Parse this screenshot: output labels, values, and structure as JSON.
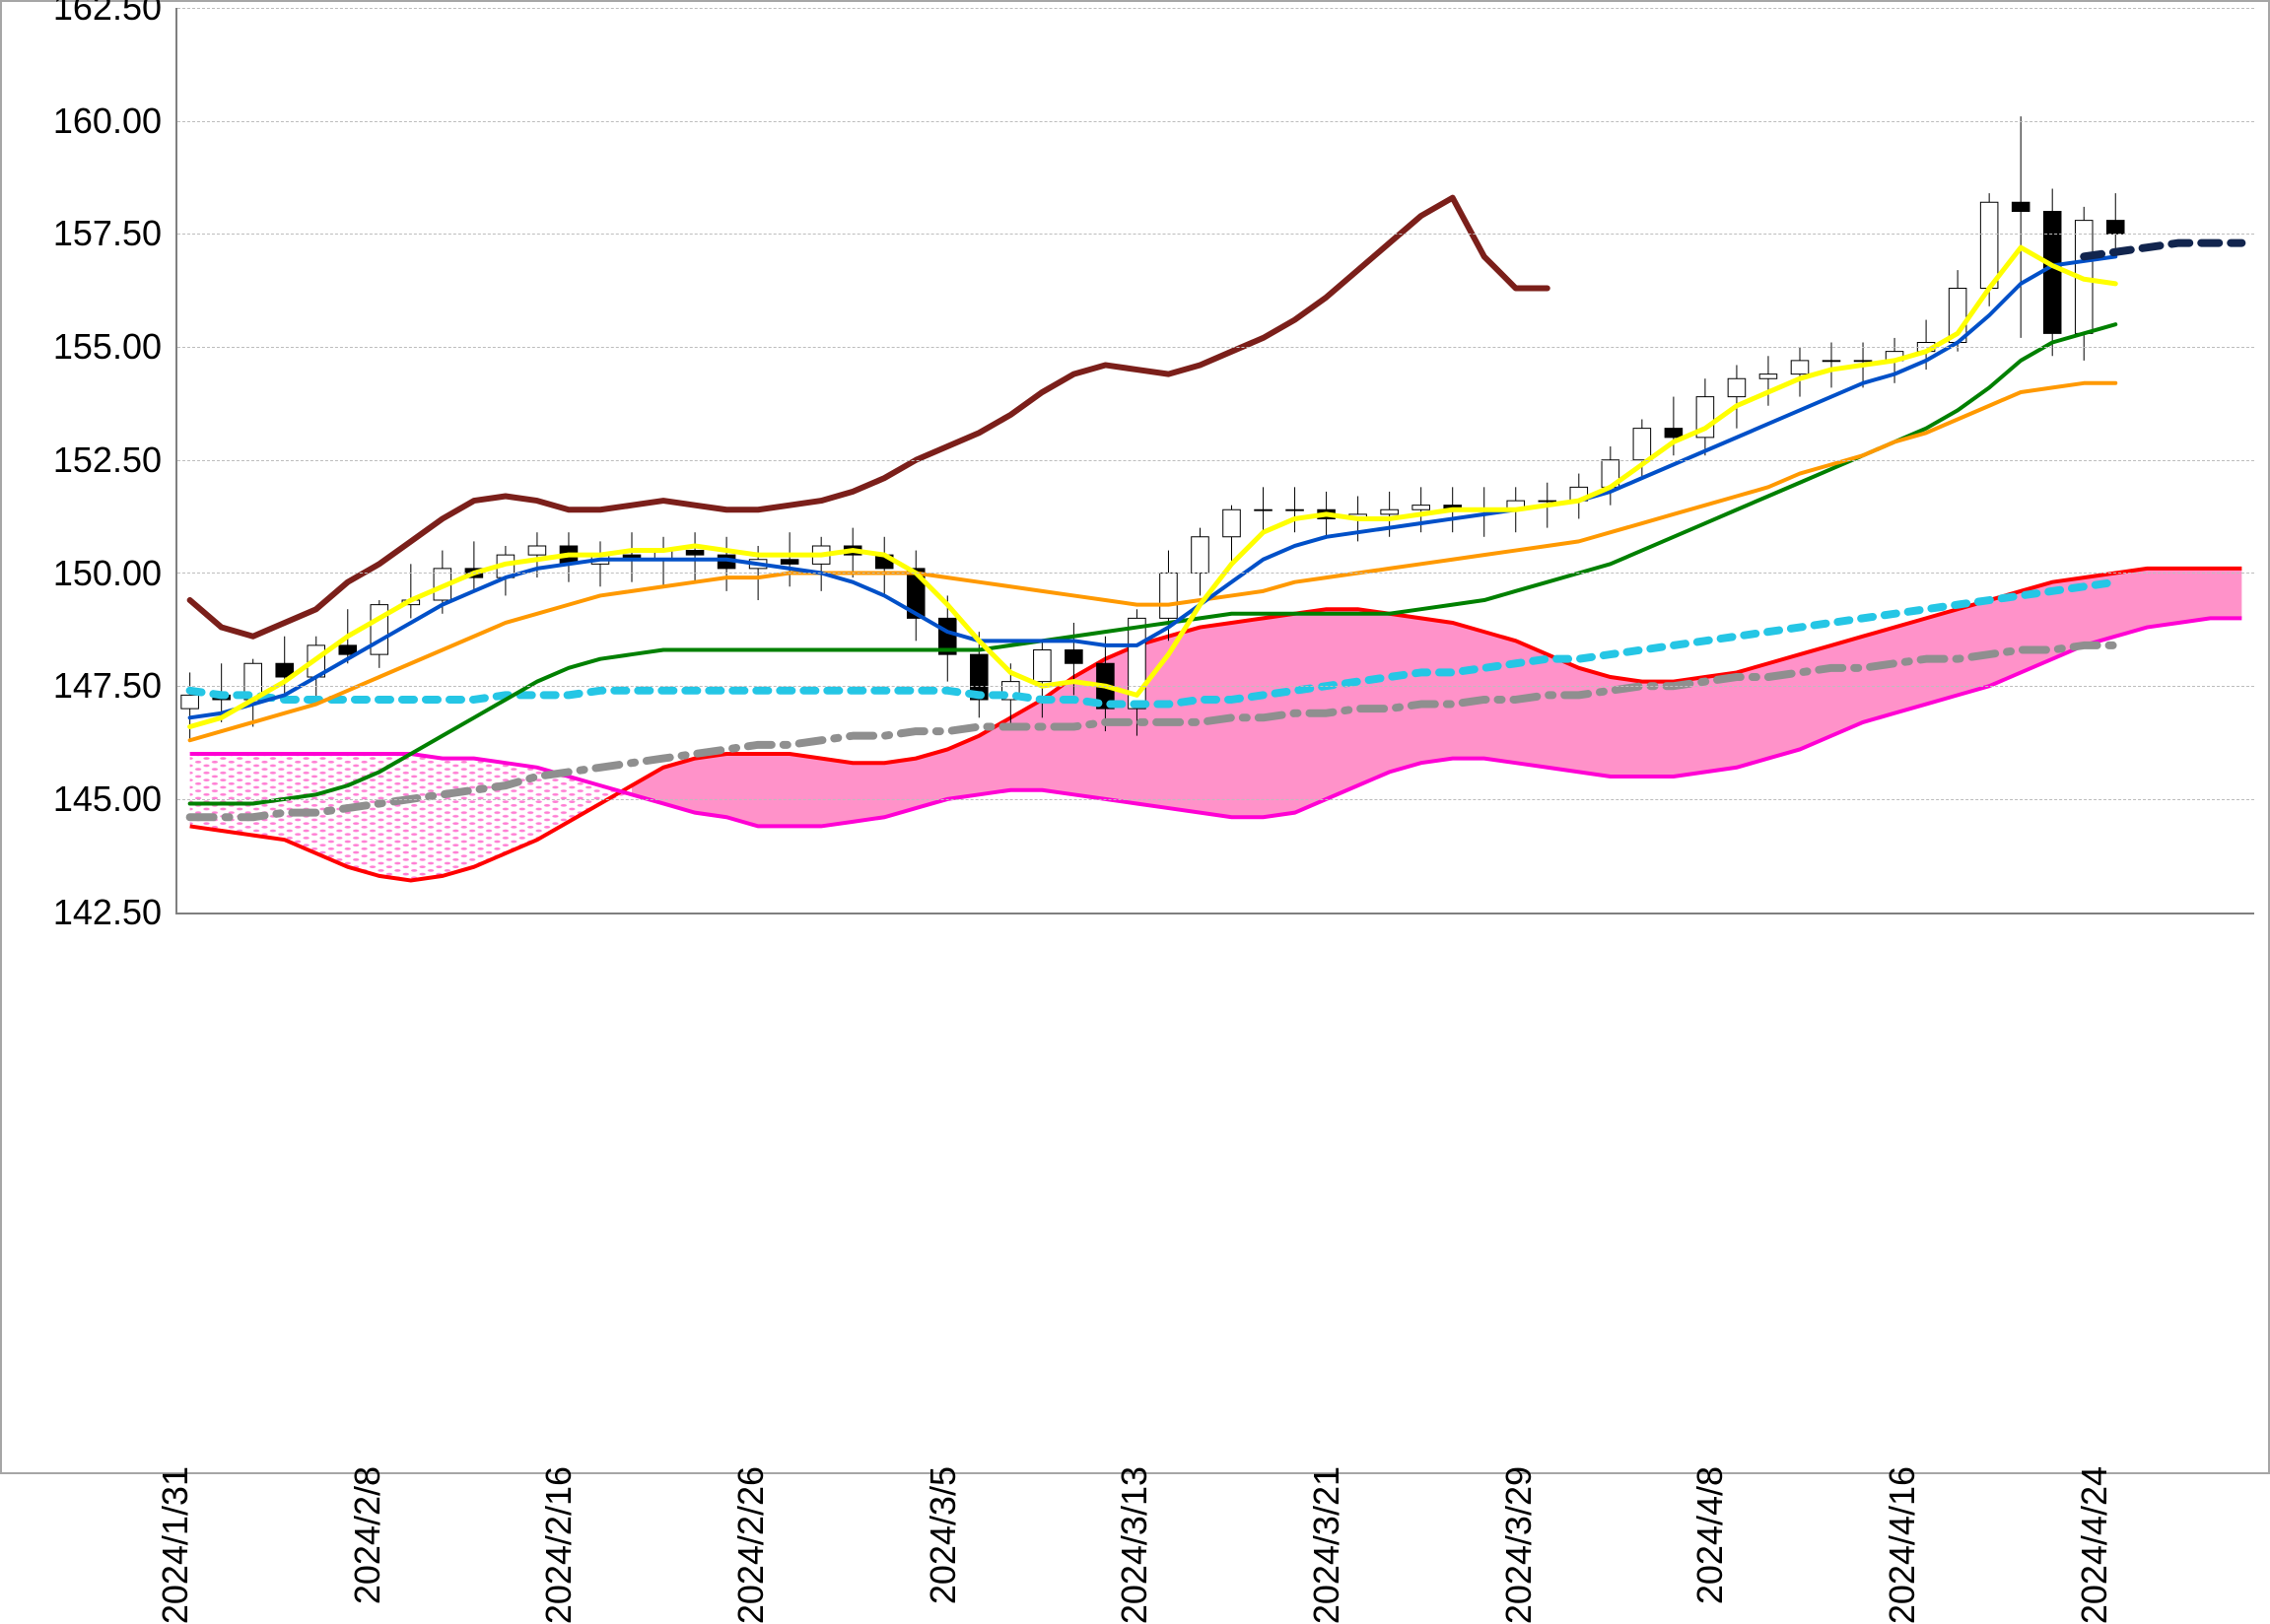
{
  "chart": {
    "type": "financial-ichimoku",
    "title": "",
    "background_color": "#ffffff",
    "border_color": "#a6a6a6",
    "grid_color": "#bdbdbd",
    "axis_color": "#7f7f7f",
    "tick_fontsize": 36,
    "tick_color": "#000000",
    "ylim": [
      142.5,
      162.5
    ],
    "ytick_step": 2.5,
    "ytick_labels": [
      "142.50",
      "145.00",
      "147.50",
      "150.00",
      "152.50",
      "155.00",
      "157.50",
      "160.00",
      "162.50"
    ],
    "x_categories": [
      "2024/1/31",
      "2024/2/8",
      "2024/2/16",
      "2024/2/26",
      "2024/3/5",
      "2024/3/13",
      "2024/3/21",
      "2024/3/29",
      "2024/4/8",
      "2024/4/16",
      "2024/4/24"
    ],
    "n_points": 66,
    "candles": {
      "up_color": "#ffffff",
      "down_color": "#000000",
      "wick_color": "#000000",
      "open": [
        147.0,
        147.3,
        147.2,
        148.0,
        147.7,
        148.4,
        148.2,
        149.3,
        149.4,
        150.1,
        149.9,
        150.4,
        150.6,
        150.2,
        150.4,
        150.3,
        150.5,
        150.4,
        150.1,
        150.3,
        150.2,
        150.6,
        150.4,
        150.1,
        149.0,
        148.2,
        147.2,
        147.6,
        148.3,
        148.0,
        147.0,
        149.0,
        150.0,
        150.8,
        151.4,
        151.4,
        151.4,
        151.2,
        151.3,
        151.4,
        151.5,
        151.4,
        151.4,
        151.6,
        151.6,
        151.9,
        152.5,
        153.2,
        153.0,
        153.9,
        154.3,
        154.4,
        154.7,
        154.7,
        154.7,
        154.9,
        155.1,
        156.3,
        158.2,
        158.0,
        155.3,
        157.8
      ],
      "high": [
        147.8,
        148.0,
        148.1,
        148.6,
        148.6,
        149.2,
        149.4,
        150.2,
        150.5,
        150.7,
        150.6,
        150.9,
        150.9,
        150.7,
        150.9,
        150.8,
        150.9,
        150.8,
        150.6,
        150.9,
        150.8,
        151.0,
        150.8,
        150.5,
        149.5,
        148.7,
        148.0,
        148.5,
        148.9,
        148.6,
        149.2,
        150.5,
        151.0,
        151.5,
        151.9,
        151.9,
        151.8,
        151.7,
        151.8,
        151.9,
        151.9,
        151.9,
        151.9,
        152.0,
        152.2,
        152.8,
        153.4,
        153.9,
        154.3,
        154.6,
        154.8,
        155.0,
        155.1,
        155.1,
        155.2,
        155.6,
        156.7,
        158.4,
        160.1,
        158.5,
        158.1,
        158.4
      ],
      "low": [
        146.3,
        146.7,
        146.6,
        147.3,
        147.2,
        148.0,
        147.9,
        149.0,
        149.1,
        149.6,
        149.5,
        149.9,
        149.8,
        149.7,
        149.8,
        149.7,
        149.8,
        149.6,
        149.4,
        149.7,
        149.6,
        149.9,
        149.5,
        148.5,
        147.6,
        146.8,
        146.6,
        146.8,
        147.3,
        146.5,
        146.4,
        148.5,
        149.5,
        150.2,
        150.9,
        150.9,
        150.8,
        150.7,
        150.8,
        150.9,
        150.9,
        150.8,
        150.9,
        151.0,
        151.2,
        151.5,
        152.1,
        152.6,
        152.6,
        153.2,
        153.7,
        153.9,
        154.1,
        154.1,
        154.2,
        154.5,
        154.9,
        155.9,
        155.2,
        154.8,
        154.7,
        157.0
      ],
      "close": [
        147.3,
        147.2,
        148.0,
        147.7,
        148.4,
        148.2,
        149.3,
        149.4,
        150.1,
        149.9,
        150.4,
        150.6,
        150.2,
        150.4,
        150.3,
        150.5,
        150.4,
        150.1,
        150.3,
        150.2,
        150.6,
        150.4,
        150.1,
        149.0,
        148.2,
        147.2,
        147.6,
        148.3,
        148.0,
        147.0,
        149.0,
        150.0,
        150.8,
        151.4,
        151.4,
        151.4,
        151.2,
        151.3,
        151.4,
        151.5,
        151.4,
        151.4,
        151.6,
        151.6,
        151.9,
        152.5,
        153.2,
        153.0,
        153.9,
        154.3,
        154.4,
        154.7,
        154.7,
        154.7,
        154.9,
        155.1,
        156.3,
        158.2,
        158.0,
        155.3,
        157.8,
        157.5
      ]
    },
    "series": {
      "dark_red": {
        "color": "#7b1f1a",
        "width": 6,
        "dash": "none",
        "values": [
          149.4,
          148.8,
          148.6,
          148.9,
          149.2,
          149.8,
          150.2,
          150.7,
          151.2,
          151.6,
          151.7,
          151.6,
          151.4,
          151.4,
          151.5,
          151.6,
          151.5,
          151.4,
          151.4,
          151.5,
          151.6,
          151.8,
          152.1,
          152.5,
          152.8,
          153.1,
          153.5,
          154.0,
          154.4,
          154.6,
          154.5,
          154.4,
          154.6,
          154.9,
          155.2,
          155.6,
          156.1,
          156.7,
          157.3,
          157.9,
          158.3,
          157.0,
          156.3,
          156.3
        ]
      },
      "blue": {
        "color": "#0050c8",
        "width": 4,
        "dash": "none",
        "values": [
          146.8,
          146.9,
          147.1,
          147.3,
          147.7,
          148.1,
          148.5,
          148.9,
          149.3,
          149.6,
          149.9,
          150.1,
          150.2,
          150.3,
          150.3,
          150.3,
          150.3,
          150.3,
          150.2,
          150.1,
          150.0,
          149.8,
          149.5,
          149.1,
          148.7,
          148.5,
          148.5,
          148.5,
          148.5,
          148.4,
          148.4,
          148.8,
          149.3,
          149.8,
          150.3,
          150.6,
          150.8,
          150.9,
          151.0,
          151.1,
          151.2,
          151.3,
          151.4,
          151.5,
          151.6,
          151.8,
          152.1,
          152.4,
          152.7,
          153.0,
          153.3,
          153.6,
          153.9,
          154.2,
          154.4,
          154.7,
          155.1,
          155.7,
          156.4,
          156.8,
          156.9,
          157.0
        ]
      },
      "yellow": {
        "color": "#ffff00",
        "width": 5,
        "dash": "none",
        "values": [
          146.6,
          146.8,
          147.2,
          147.6,
          148.1,
          148.6,
          149.0,
          149.4,
          149.7,
          150.0,
          150.2,
          150.3,
          150.4,
          150.4,
          150.5,
          150.5,
          150.6,
          150.5,
          150.4,
          150.4,
          150.4,
          150.5,
          150.4,
          150.0,
          149.3,
          148.5,
          147.8,
          147.5,
          147.6,
          147.5,
          147.3,
          148.2,
          149.3,
          150.2,
          150.9,
          151.2,
          151.3,
          151.2,
          151.2,
          151.3,
          151.4,
          151.4,
          151.4,
          151.5,
          151.6,
          151.9,
          152.4,
          152.9,
          153.2,
          153.7,
          154.0,
          154.3,
          154.5,
          154.6,
          154.7,
          154.9,
          155.3,
          156.3,
          157.2,
          156.8,
          156.5,
          156.4
        ]
      },
      "orange": {
        "color": "#ff9900",
        "width": 4,
        "dash": "none",
        "values": [
          146.3,
          146.5,
          146.7,
          146.9,
          147.1,
          147.4,
          147.7,
          148.0,
          148.3,
          148.6,
          148.9,
          149.1,
          149.3,
          149.5,
          149.6,
          149.7,
          149.8,
          149.9,
          149.9,
          150.0,
          150.0,
          150.0,
          150.0,
          150.0,
          149.9,
          149.8,
          149.7,
          149.6,
          149.5,
          149.4,
          149.3,
          149.3,
          149.4,
          149.5,
          149.6,
          149.8,
          149.9,
          150.0,
          150.1,
          150.2,
          150.3,
          150.4,
          150.5,
          150.6,
          150.7,
          150.9,
          151.1,
          151.3,
          151.5,
          151.7,
          151.9,
          152.2,
          152.4,
          152.6,
          152.9,
          153.1,
          153.4,
          153.7,
          154.0,
          154.1,
          154.2,
          154.2
        ]
      },
      "green": {
        "color": "#008000",
        "width": 4,
        "dash": "none",
        "values": [
          144.9,
          144.9,
          144.9,
          145.0,
          145.1,
          145.3,
          145.6,
          146.0,
          146.4,
          146.8,
          147.2,
          147.6,
          147.9,
          148.1,
          148.2,
          148.3,
          148.3,
          148.3,
          148.3,
          148.3,
          148.3,
          148.3,
          148.3,
          148.3,
          148.3,
          148.3,
          148.4,
          148.5,
          148.6,
          148.7,
          148.8,
          148.9,
          149.0,
          149.1,
          149.1,
          149.1,
          149.1,
          149.1,
          149.1,
          149.2,
          149.3,
          149.4,
          149.6,
          149.8,
          150.0,
          150.2,
          150.5,
          150.8,
          151.1,
          151.4,
          151.7,
          152.0,
          152.3,
          152.6,
          152.9,
          153.2,
          153.6,
          154.1,
          154.7,
          155.1,
          155.3,
          155.5
        ]
      },
      "cyan_dashed": {
        "color": "#25c6e5",
        "width": 8,
        "dash": "12,12",
        "values": [
          147.4,
          147.3,
          147.3,
          147.2,
          147.2,
          147.2,
          147.2,
          147.2,
          147.2,
          147.2,
          147.3,
          147.3,
          147.3,
          147.4,
          147.4,
          147.4,
          147.4,
          147.4,
          147.4,
          147.4,
          147.4,
          147.4,
          147.4,
          147.4,
          147.4,
          147.3,
          147.3,
          147.2,
          147.2,
          147.1,
          147.1,
          147.1,
          147.2,
          147.2,
          147.3,
          147.4,
          147.5,
          147.6,
          147.7,
          147.8,
          147.8,
          147.9,
          148.0,
          148.1,
          148.1,
          148.2,
          148.3,
          148.4,
          148.5,
          148.6,
          148.7,
          148.8,
          148.9,
          149.0,
          149.1,
          149.2,
          149.3,
          149.4,
          149.5,
          149.6,
          149.7,
          149.8
        ]
      },
      "gray_dashdot": {
        "color": "#8f8f8f",
        "width": 8,
        "dash": "24,12,4,12",
        "values": [
          144.6,
          144.6,
          144.6,
          144.7,
          144.7,
          144.8,
          144.9,
          145.0,
          145.1,
          145.2,
          145.3,
          145.5,
          145.6,
          145.7,
          145.8,
          145.9,
          146.0,
          146.1,
          146.2,
          146.2,
          146.3,
          146.4,
          146.4,
          146.5,
          146.5,
          146.6,
          146.6,
          146.6,
          146.6,
          146.7,
          146.7,
          146.7,
          146.7,
          146.8,
          146.8,
          146.9,
          146.9,
          147.0,
          147.0,
          147.1,
          147.1,
          147.2,
          147.2,
          147.3,
          147.3,
          147.4,
          147.5,
          147.5,
          147.6,
          147.7,
          147.7,
          147.8,
          147.9,
          147.9,
          148.0,
          148.1,
          148.1,
          148.2,
          148.3,
          148.3,
          148.4,
          148.4
        ]
      },
      "navy_dashed_tail": {
        "color": "#12254e",
        "width": 8,
        "dash": "18,12",
        "start_index": 60,
        "values": [
          157.0,
          157.1,
          157.2,
          157.3,
          157.3,
          157.3
        ]
      }
    },
    "cloud": {
      "spanA_color_line": "#ff0000",
      "spanB_color_line": "#ff00d4",
      "fill_pos": "#ff7fbf",
      "fill_neg_pattern": "#ff7fd4",
      "line_width": 4,
      "spanA": [
        144.4,
        144.3,
        144.2,
        144.1,
        143.8,
        143.5,
        143.3,
        143.2,
        143.3,
        143.5,
        143.8,
        144.1,
        144.5,
        144.9,
        145.3,
        145.7,
        145.9,
        146.0,
        146.0,
        146.0,
        145.9,
        145.8,
        145.8,
        145.9,
        146.1,
        146.4,
        146.8,
        147.2,
        147.7,
        148.1,
        148.4,
        148.6,
        148.8,
        148.9,
        149.0,
        149.1,
        149.2,
        149.2,
        149.1,
        149.0,
        148.9,
        148.7,
        148.5,
        148.2,
        147.9,
        147.7,
        147.6,
        147.6,
        147.7,
        147.8,
        148.0,
        148.2,
        148.4,
        148.6,
        148.8,
        149.0,
        149.2,
        149.4,
        149.6,
        149.8,
        149.9,
        150.0,
        150.1,
        150.1,
        150.1,
        150.1
      ],
      "spanB": [
        146.0,
        146.0,
        146.0,
        146.0,
        146.0,
        146.0,
        146.0,
        146.0,
        145.9,
        145.9,
        145.8,
        145.7,
        145.5,
        145.3,
        145.1,
        144.9,
        144.7,
        144.6,
        144.4,
        144.4,
        144.4,
        144.5,
        144.6,
        144.8,
        145.0,
        145.1,
        145.2,
        145.2,
        145.1,
        145.0,
        144.9,
        144.8,
        144.7,
        144.6,
        144.6,
        144.7,
        145.0,
        145.3,
        145.6,
        145.8,
        145.9,
        145.9,
        145.8,
        145.7,
        145.6,
        145.5,
        145.5,
        145.5,
        145.6,
        145.7,
        145.9,
        146.1,
        146.4,
        146.7,
        146.9,
        147.1,
        147.3,
        147.5,
        147.8,
        148.1,
        148.4,
        148.6,
        148.8,
        148.9,
        149.0,
        149.0
      ]
    }
  }
}
